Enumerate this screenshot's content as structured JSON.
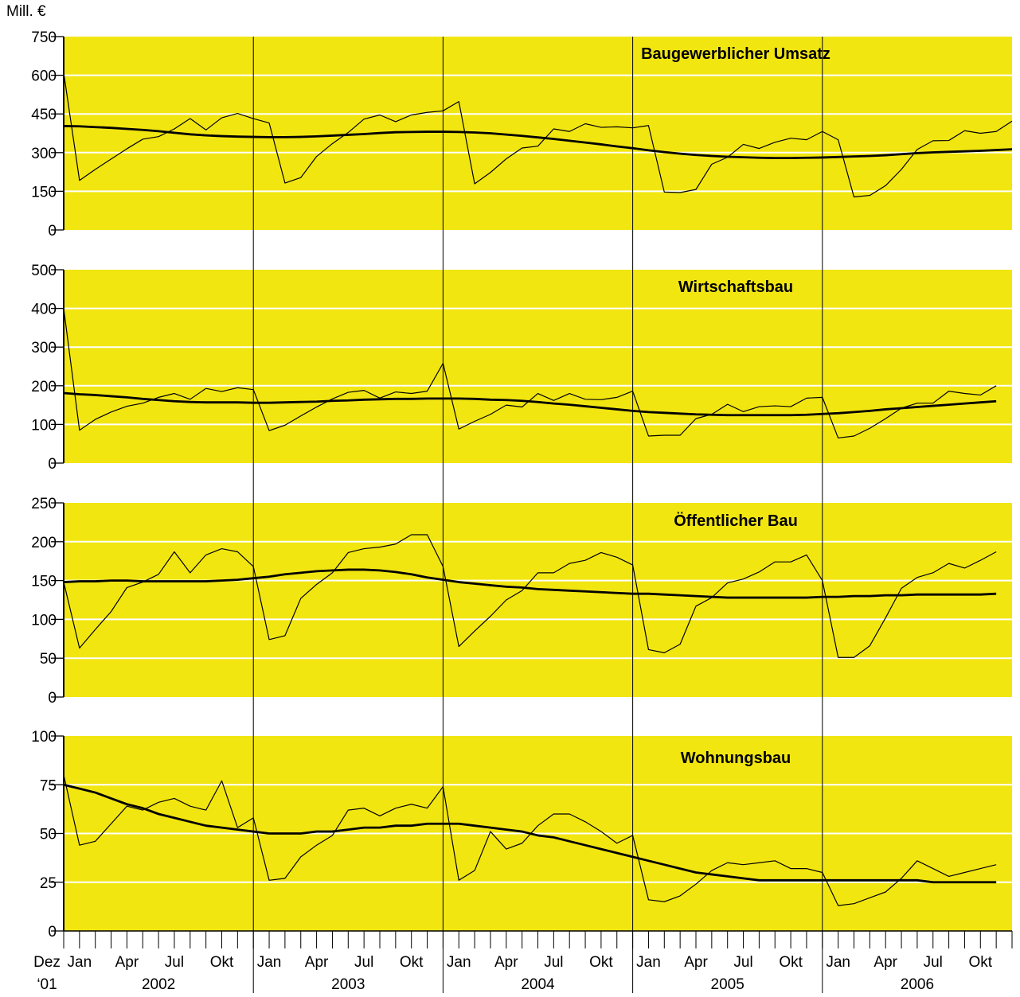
{
  "figure": {
    "unit_label": "Mill. €",
    "colors": {
      "panel_bg": "#f2e611",
      "grid": "#ffffff",
      "line": "#000000"
    },
    "month_labels": [
      "Dez",
      "Jan",
      "Apr",
      "Jul",
      "Okt"
    ],
    "first_sub_label": "‘01",
    "years": [
      "2002",
      "2003",
      "2004",
      "2005",
      "2006"
    ]
  },
  "chart_data": [
    {
      "type": "line",
      "title": "Baugewerblicher Umsatz",
      "ylim": [
        0,
        750
      ],
      "yticks": [
        0,
        150,
        300,
        450,
        600,
        750
      ],
      "x_start": "2001-12",
      "series": [
        {
          "values": [
            610,
            192,
            235,
            275,
            315,
            352,
            362,
            392,
            432,
            388,
            435,
            452,
            432,
            415,
            182,
            203,
            285,
            335,
            378,
            430,
            446,
            420,
            446,
            456,
            462,
            498,
            179,
            223,
            276,
            318,
            325,
            392,
            382,
            412,
            398,
            400,
            396,
            405,
            147,
            145,
            157,
            255,
            282,
            332,
            316,
            340,
            356,
            350,
            382,
            350,
            128,
            134,
            172,
            235,
            312,
            346,
            347,
            385,
            375,
            382,
            422
          ]
        },
        {
          "values": [
            403,
            402,
            399,
            396,
            392,
            388,
            383,
            377,
            371,
            367,
            364,
            362,
            361,
            360,
            360,
            361,
            363,
            366,
            369,
            372,
            376,
            379,
            380,
            381,
            381,
            380,
            378,
            375,
            370,
            365,
            359,
            353,
            346,
            339,
            332,
            324,
            317,
            309,
            302,
            296,
            291,
            287,
            284,
            282,
            280,
            279,
            279,
            280,
            281,
            283,
            285,
            287,
            290,
            294,
            298,
            301,
            303,
            305,
            307,
            310,
            313
          ]
        }
      ]
    },
    {
      "type": "line",
      "title": "Wirtschaftsbau",
      "ylim": [
        0,
        500
      ],
      "yticks": [
        0,
        100,
        200,
        300,
        400,
        500
      ],
      "x_start": "2001-12",
      "series": [
        {
          "values": [
            400,
            85,
            113,
            132,
            147,
            155,
            170,
            180,
            165,
            193,
            185,
            195,
            190,
            84,
            98,
            122,
            145,
            166,
            183,
            188,
            168,
            184,
            180,
            186,
            258,
            88,
            108,
            126,
            150,
            145,
            180,
            162,
            180,
            165,
            164,
            170,
            186,
            70,
            72,
            72,
            115,
            126,
            152,
            133,
            146,
            148,
            146,
            168,
            170,
            65,
            70,
            90,
            115,
            142,
            155,
            155,
            186,
            180,
            176,
            200
          ]
        },
        {
          "values": [
            181,
            178,
            176,
            173,
            170,
            166,
            163,
            160,
            158,
            157,
            157,
            157,
            156,
            156,
            157,
            158,
            159,
            161,
            162,
            164,
            165,
            166,
            166,
            167,
            167,
            167,
            166,
            164,
            163,
            161,
            158,
            154,
            151,
            147,
            143,
            139,
            135,
            132,
            130,
            128,
            126,
            125,
            124,
            124,
            124,
            124,
            124,
            125,
            127,
            129,
            132,
            135,
            139,
            142,
            145,
            148,
            151,
            154,
            157,
            160
          ]
        }
      ]
    },
    {
      "type": "line",
      "title": "Öffentlicher Bau",
      "ylim": [
        0,
        250
      ],
      "yticks": [
        0,
        50,
        100,
        150,
        200,
        250
      ],
      "x_start": "2001-12",
      "series": [
        {
          "values": [
            148,
            63,
            87,
            110,
            141,
            148,
            158,
            187,
            160,
            183,
            191,
            187,
            168,
            74,
            79,
            127,
            145,
            160,
            186,
            191,
            193,
            197,
            209,
            209,
            168,
            65,
            85,
            104,
            125,
            137,
            160,
            160,
            172,
            176,
            186,
            180,
            170,
            61,
            57,
            68,
            117,
            128,
            147,
            152,
            161,
            174,
            174,
            183,
            150,
            51,
            51,
            66,
            102,
            140,
            154,
            160,
            172,
            166,
            176,
            187
          ]
        },
        {
          "values": [
            148,
            149,
            149,
            150,
            150,
            149,
            149,
            149,
            149,
            149,
            150,
            151,
            153,
            155,
            158,
            160,
            162,
            163,
            164,
            164,
            163,
            161,
            158,
            154,
            151,
            148,
            146,
            144,
            142,
            141,
            139,
            138,
            137,
            136,
            135,
            134,
            133,
            133,
            132,
            131,
            130,
            129,
            128,
            128,
            128,
            128,
            128,
            128,
            129,
            129,
            130,
            130,
            131,
            131,
            132,
            132,
            132,
            132,
            132,
            133
          ]
        }
      ]
    },
    {
      "type": "line",
      "title": "Wohnungsbau",
      "ylim": [
        0,
        100
      ],
      "yticks": [
        0,
        25,
        50,
        75,
        100
      ],
      "x_start": "2001-12",
      "series": [
        {
          "values": [
            80,
            44,
            46,
            55,
            64,
            62,
            66,
            68,
            64,
            62,
            77,
            53,
            58,
            26,
            27,
            38,
            44,
            49,
            62,
            63,
            59,
            63,
            65,
            63,
            74,
            26,
            31,
            51,
            42,
            45,
            54,
            60,
            60,
            56,
            51,
            45,
            49,
            16,
            15,
            18,
            24,
            31,
            35,
            34,
            35,
            36,
            32,
            32,
            30,
            13,
            14,
            17,
            20,
            27,
            36,
            32,
            28,
            30,
            32,
            34
          ]
        },
        {
          "values": [
            75,
            73,
            71,
            68,
            65,
            63,
            60,
            58,
            56,
            54,
            53,
            52,
            51,
            50,
            50,
            50,
            51,
            51,
            52,
            53,
            53,
            54,
            54,
            55,
            55,
            55,
            54,
            53,
            52,
            51,
            49,
            48,
            46,
            44,
            42,
            40,
            38,
            36,
            34,
            32,
            30,
            29,
            28,
            27,
            26,
            26,
            26,
            26,
            26,
            26,
            26,
            26,
            26,
            26,
            26,
            25,
            25,
            25,
            25,
            25
          ]
        }
      ]
    }
  ]
}
